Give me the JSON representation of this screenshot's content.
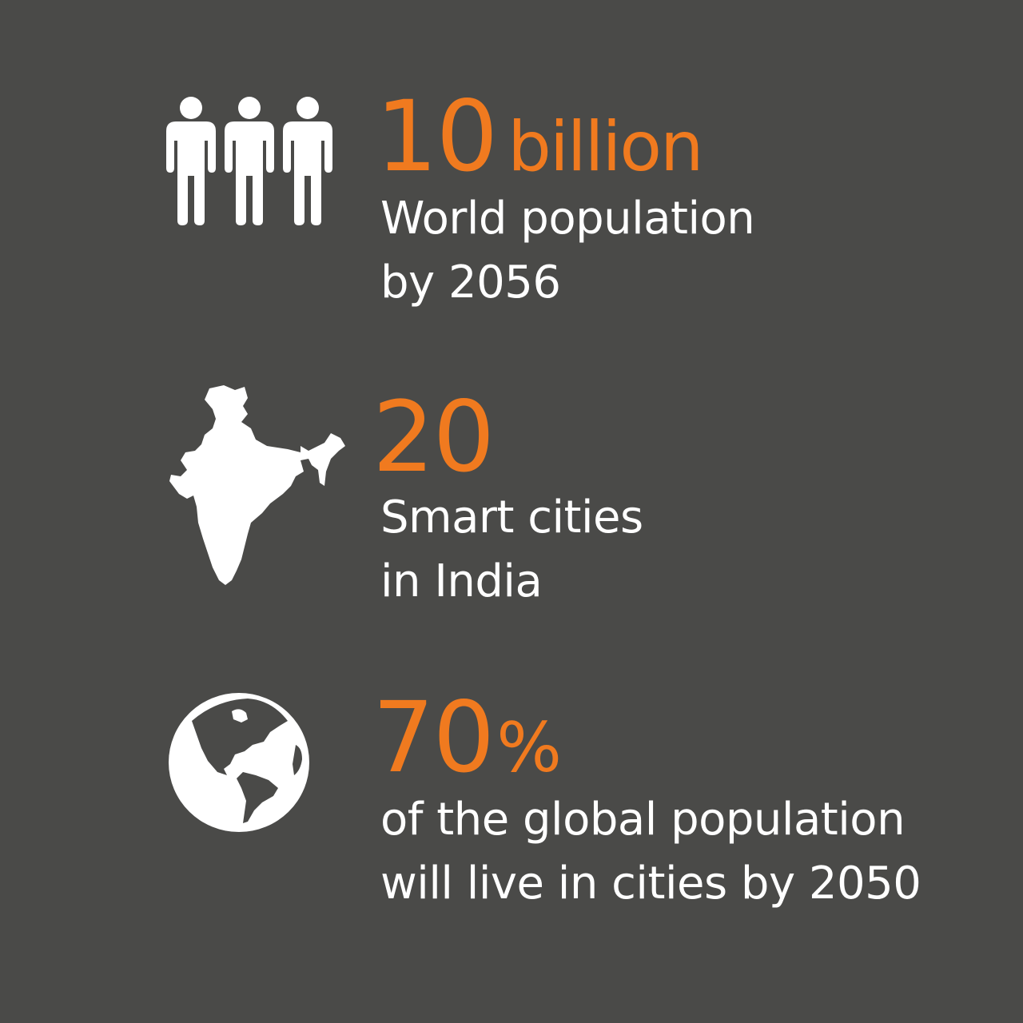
{
  "colors": {
    "background": "#4a4a48",
    "accent": "#f07a1f",
    "text": "#ffffff"
  },
  "stats": [
    {
      "icon": "people-icon",
      "value": "10",
      "unit": "billion",
      "lines": [
        "World population",
        "by 2056"
      ]
    },
    {
      "icon": "india-map-icon",
      "value": "20",
      "unit": "",
      "lines": [
        "Smart cities",
        "in India"
      ]
    },
    {
      "icon": "globe-icon",
      "value": "70",
      "unit": "%",
      "lines": [
        "of the global population",
        "will live in cities by 2050"
      ]
    }
  ]
}
